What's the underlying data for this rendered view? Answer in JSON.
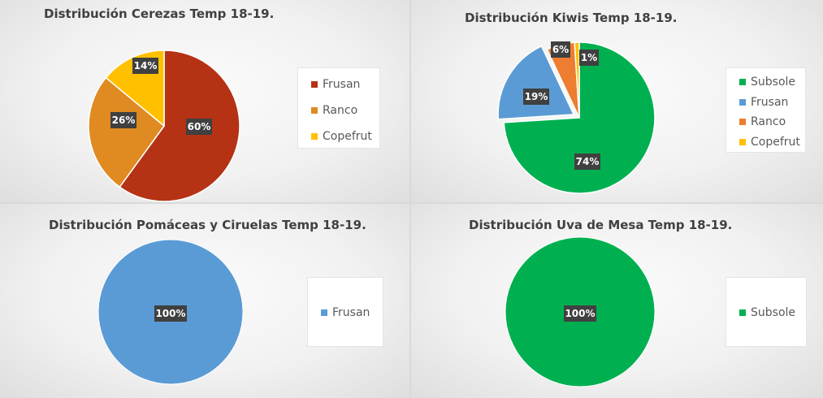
{
  "chart_data": [
    {
      "type": "pie",
      "title": "Distribución Cerezas Temp 18-19.",
      "categories": [
        "Frusan",
        "Ranco",
        "Copefrut"
      ],
      "values": [
        60,
        26,
        14
      ],
      "labels": [
        "60%",
        "26%",
        "14%"
      ],
      "colors": [
        "#b53214",
        "#e08a22",
        "#ffc000"
      ],
      "legend": "right"
    },
    {
      "type": "pie",
      "title": "Distribución Kiwis Temp 18-19.",
      "categories": [
        "Subsole",
        "Frusan",
        "Ranco",
        "Copefrut"
      ],
      "values": [
        74,
        19,
        6,
        1
      ],
      "labels": [
        "74%",
        "19%",
        "6%",
        "1%"
      ],
      "colors": [
        "#00b050",
        "#5b9bd5",
        "#ed7d31",
        "#ffc000"
      ],
      "exploded": [
        "Frusan"
      ],
      "legend": "right"
    },
    {
      "type": "pie",
      "title": "Distribución Pomáceas y Ciruelas Temp 18-19.",
      "categories": [
        "Frusan"
      ],
      "values": [
        100
      ],
      "labels": [
        "100%"
      ],
      "colors": [
        "#5b9bd5"
      ],
      "legend": "right"
    },
    {
      "type": "pie",
      "title": "Distribución Uva de Mesa Temp 18-19.",
      "categories": [
        "Subsole"
      ],
      "values": [
        100
      ],
      "labels": [
        "100%"
      ],
      "colors": [
        "#00b050"
      ],
      "legend": "right"
    }
  ]
}
